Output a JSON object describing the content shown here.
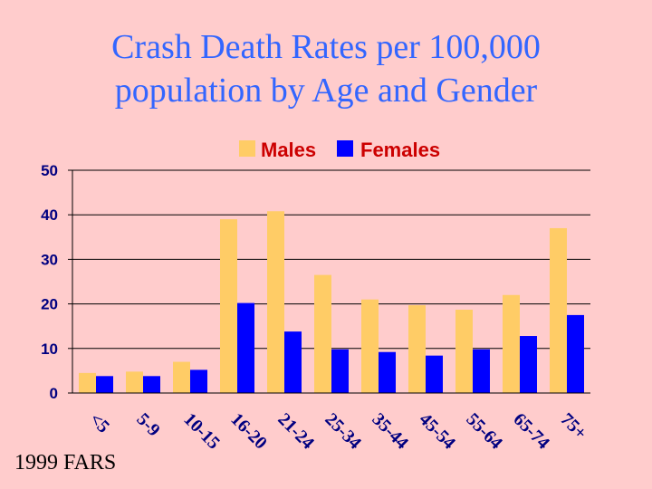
{
  "title_line1": "Crash Death Rates per 100,000",
  "title_line2": "population by Age and Gender",
  "source": "1999 FARS",
  "chart_data": {
    "type": "bar",
    "title": "Crash Death Rates per 100,000 population by Age and Gender",
    "categories": [
      "<5",
      "5-9",
      "10-15",
      "16-20",
      "21-24",
      "25-34",
      "35-44",
      "45-54",
      "55-64",
      "65-74",
      "75+"
    ],
    "series": [
      {
        "name": "Males",
        "color": "#ffcc66",
        "values": [
          4.5,
          4.8,
          7.0,
          39.0,
          40.8,
          26.5,
          21.0,
          19.7,
          18.7,
          22.0,
          37.0
        ]
      },
      {
        "name": "Females",
        "color": "#0000ff",
        "values": [
          3.8,
          3.8,
          5.2,
          20.2,
          13.8,
          9.8,
          9.2,
          8.4,
          9.8,
          12.8,
          17.5
        ]
      }
    ],
    "yticks": [
      0,
      10,
      20,
      30,
      40,
      50
    ],
    "ylim": [
      0,
      50
    ],
    "xlabel": "",
    "ylabel": "",
    "legend_position": "top"
  }
}
